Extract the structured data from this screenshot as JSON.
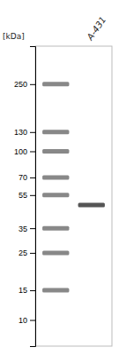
{
  "chart_data": {
    "type": "blot",
    "title": "A-431",
    "ylabel": "[kDa]",
    "log": "y",
    "ylim": [
      7,
      420
    ],
    "yticks": [
      250,
      130,
      100,
      70,
      55,
      35,
      25,
      15,
      10
    ],
    "tick_labels": "y",
    "grid": false,
    "series": [
      {
        "color": "#888888",
        "values": [
          250,
          130,
          100,
          70,
          55,
          35,
          25,
          15
        ]
      },
      {
        "color": "#555555",
        "values": [
          48
        ]
      }
    ]
  }
}
